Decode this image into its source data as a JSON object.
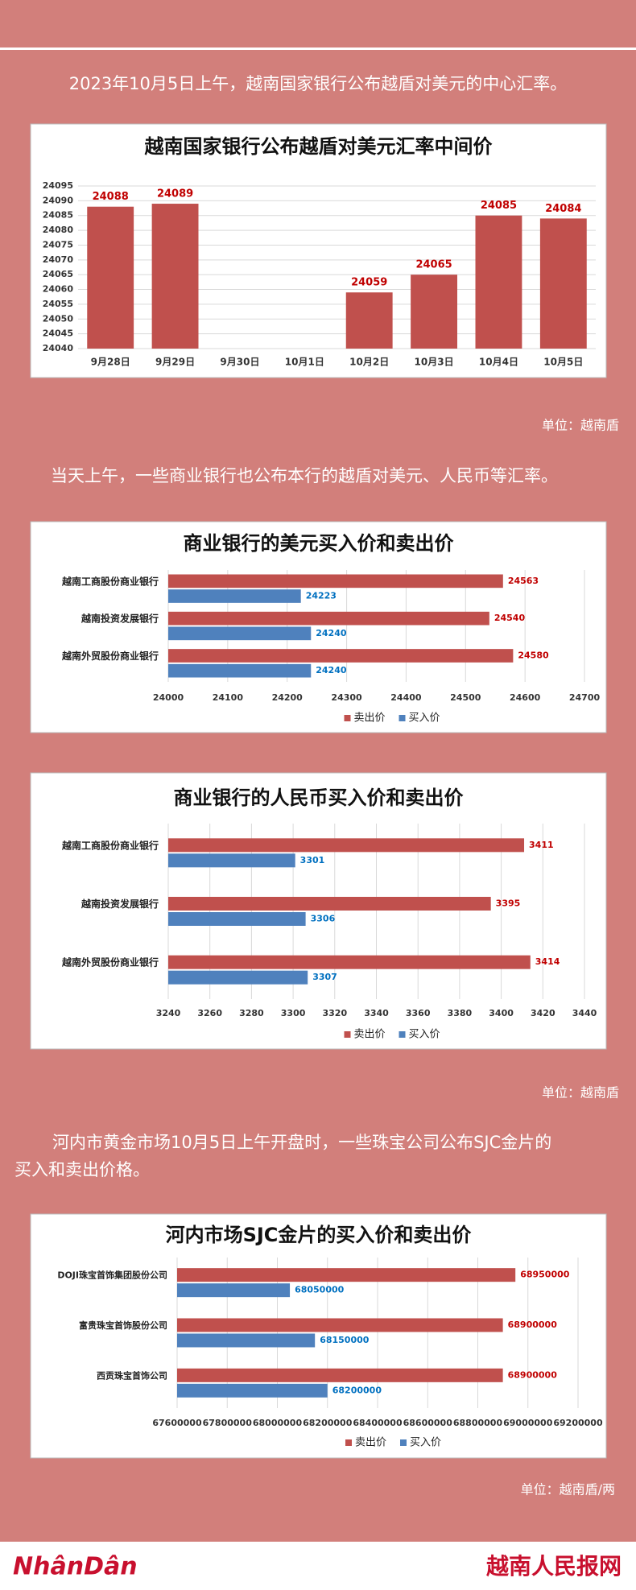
{
  "header_text": "2023年10月5日上午，越南国家银行公布越盾对美元的中心汇率。",
  "paragraph_2": "当天上午，一些商业银行也公布本行的越盾对美元、人民币等汇率。",
  "paragraph_3": [
    "河内市黄金市场10月5日上午开盘时，一些珠宝公司公布SJC金片的",
    "买入和卖出价格。"
  ],
  "units": [
    "单位：越南盾",
    "单位：越南盾",
    "单位：越南盾/两"
  ],
  "footer": {
    "left_logo": "NhânDân",
    "right_logo": "越南人民报网"
  },
  "chart_data": [
    {
      "type": "bar",
      "title": "越南国家银行公布越盾对美元汇率中间价",
      "categories": [
        "9月28日",
        "9月29日",
        "9月30日",
        "10月1日",
        "10月2日",
        "10月3日",
        "10月4日",
        "10月5日"
      ],
      "values": [
        24088,
        24089,
        null,
        null,
        24059,
        24065,
        24085,
        24084
      ],
      "color": "#c0504d",
      "label_color": "#c00000",
      "ylim": [
        24040,
        24095
      ],
      "yticks": [
        24040,
        24045,
        24050,
        24055,
        24060,
        24065,
        24070,
        24075,
        24080,
        24085,
        24090,
        24095
      ],
      "grid": true
    },
    {
      "type": "bar",
      "orientation": "horizontal",
      "title": "商业银行的美元买入价和卖出价",
      "categories": [
        "越南工商股份商业银行",
        "越南投资发展银行",
        "越南外贸股份商业银行"
      ],
      "series": [
        {
          "name": "卖出价",
          "color": "#c0504d",
          "label_color": "#c00000",
          "values": [
            24563,
            24540,
            24580
          ]
        },
        {
          "name": "买入价",
          "color": "#4f81bd",
          "label_color": "#0070c0",
          "values": [
            24223,
            24240,
            24240
          ]
        }
      ],
      "xlim": [
        24000,
        24700
      ],
      "xticks": [
        24000,
        24100,
        24200,
        24300,
        24400,
        24500,
        24600,
        24700
      ],
      "grid": true
    },
    {
      "type": "bar",
      "orientation": "horizontal",
      "title": "商业银行的人民币买入价和卖出价",
      "categories": [
        "越南工商股份商业银行",
        "越南投资发展银行",
        "越南外贸股份商业银行"
      ],
      "series": [
        {
          "name": "卖出价",
          "color": "#c0504d",
          "label_color": "#c00000",
          "values": [
            3411,
            3395,
            3414
          ]
        },
        {
          "name": "买入价",
          "color": "#4f81bd",
          "label_color": "#0070c0",
          "values": [
            3301,
            3306,
            3307
          ]
        }
      ],
      "xlim": [
        3240,
        3440
      ],
      "xticks": [
        3240,
        3260,
        3280,
        3300,
        3320,
        3340,
        3360,
        3380,
        3400,
        3420,
        3440
      ],
      "grid": true
    },
    {
      "type": "bar",
      "orientation": "horizontal",
      "title": "河内市场SJC金片的买入价和卖出价",
      "categories": [
        "DOJI珠宝首饰集团股份公司",
        "富贵珠宝首饰股份公司",
        "西贡珠宝首饰公司"
      ],
      "series": [
        {
          "name": "卖出价",
          "color": "#c0504d",
          "label_color": "#c00000",
          "values": [
            68950000,
            68900000,
            68900000
          ]
        },
        {
          "name": "买入价",
          "color": "#4f81bd",
          "label_color": "#0070c0",
          "values": [
            68050000,
            68150000,
            68200000
          ]
        }
      ],
      "xlim": [
        67600000,
        69200000
      ],
      "xticks": [
        67600000,
        67800000,
        68000000,
        68200000,
        68400000,
        68600000,
        68800000,
        69000000,
        69200000
      ],
      "grid": true
    }
  ]
}
